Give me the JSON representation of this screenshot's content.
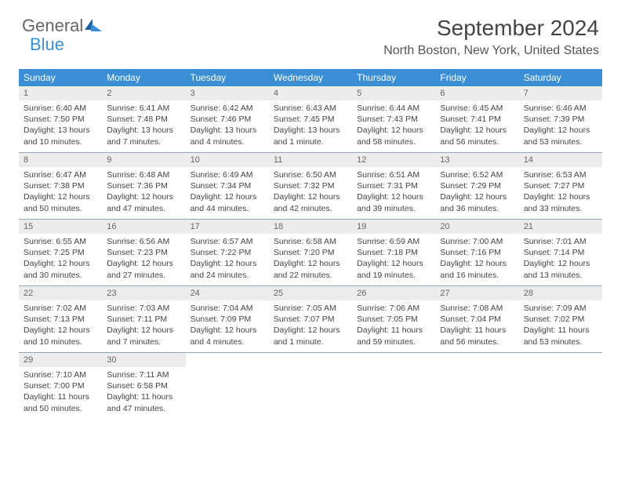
{
  "logo": {
    "part1": "General",
    "part2": "Blue"
  },
  "title": "September 2024",
  "location": "North Boston, New York, United States",
  "colors": {
    "header_bar": "#3a8fd4",
    "daynum_bg": "#ececec",
    "week_border": "#8fa8bd",
    "text": "#444444",
    "logo_grey": "#666666",
    "logo_blue": "#3a8fd4"
  },
  "dow": [
    "Sunday",
    "Monday",
    "Tuesday",
    "Wednesday",
    "Thursday",
    "Friday",
    "Saturday"
  ],
  "days": [
    {
      "n": "1",
      "sr": "Sunrise: 6:40 AM",
      "ss": "Sunset: 7:50 PM",
      "dl1": "Daylight: 13 hours",
      "dl2": "and 10 minutes."
    },
    {
      "n": "2",
      "sr": "Sunrise: 6:41 AM",
      "ss": "Sunset: 7:48 PM",
      "dl1": "Daylight: 13 hours",
      "dl2": "and 7 minutes."
    },
    {
      "n": "3",
      "sr": "Sunrise: 6:42 AM",
      "ss": "Sunset: 7:46 PM",
      "dl1": "Daylight: 13 hours",
      "dl2": "and 4 minutes."
    },
    {
      "n": "4",
      "sr": "Sunrise: 6:43 AM",
      "ss": "Sunset: 7:45 PM",
      "dl1": "Daylight: 13 hours",
      "dl2": "and 1 minute."
    },
    {
      "n": "5",
      "sr": "Sunrise: 6:44 AM",
      "ss": "Sunset: 7:43 PM",
      "dl1": "Daylight: 12 hours",
      "dl2": "and 58 minutes."
    },
    {
      "n": "6",
      "sr": "Sunrise: 6:45 AM",
      "ss": "Sunset: 7:41 PM",
      "dl1": "Daylight: 12 hours",
      "dl2": "and 56 minutes."
    },
    {
      "n": "7",
      "sr": "Sunrise: 6:46 AM",
      "ss": "Sunset: 7:39 PM",
      "dl1": "Daylight: 12 hours",
      "dl2": "and 53 minutes."
    },
    {
      "n": "8",
      "sr": "Sunrise: 6:47 AM",
      "ss": "Sunset: 7:38 PM",
      "dl1": "Daylight: 12 hours",
      "dl2": "and 50 minutes."
    },
    {
      "n": "9",
      "sr": "Sunrise: 6:48 AM",
      "ss": "Sunset: 7:36 PM",
      "dl1": "Daylight: 12 hours",
      "dl2": "and 47 minutes."
    },
    {
      "n": "10",
      "sr": "Sunrise: 6:49 AM",
      "ss": "Sunset: 7:34 PM",
      "dl1": "Daylight: 12 hours",
      "dl2": "and 44 minutes."
    },
    {
      "n": "11",
      "sr": "Sunrise: 6:50 AM",
      "ss": "Sunset: 7:32 PM",
      "dl1": "Daylight: 12 hours",
      "dl2": "and 42 minutes."
    },
    {
      "n": "12",
      "sr": "Sunrise: 6:51 AM",
      "ss": "Sunset: 7:31 PM",
      "dl1": "Daylight: 12 hours",
      "dl2": "and 39 minutes."
    },
    {
      "n": "13",
      "sr": "Sunrise: 6:52 AM",
      "ss": "Sunset: 7:29 PM",
      "dl1": "Daylight: 12 hours",
      "dl2": "and 36 minutes."
    },
    {
      "n": "14",
      "sr": "Sunrise: 6:53 AM",
      "ss": "Sunset: 7:27 PM",
      "dl1": "Daylight: 12 hours",
      "dl2": "and 33 minutes."
    },
    {
      "n": "15",
      "sr": "Sunrise: 6:55 AM",
      "ss": "Sunset: 7:25 PM",
      "dl1": "Daylight: 12 hours",
      "dl2": "and 30 minutes."
    },
    {
      "n": "16",
      "sr": "Sunrise: 6:56 AM",
      "ss": "Sunset: 7:23 PM",
      "dl1": "Daylight: 12 hours",
      "dl2": "and 27 minutes."
    },
    {
      "n": "17",
      "sr": "Sunrise: 6:57 AM",
      "ss": "Sunset: 7:22 PM",
      "dl1": "Daylight: 12 hours",
      "dl2": "and 24 minutes."
    },
    {
      "n": "18",
      "sr": "Sunrise: 6:58 AM",
      "ss": "Sunset: 7:20 PM",
      "dl1": "Daylight: 12 hours",
      "dl2": "and 22 minutes."
    },
    {
      "n": "19",
      "sr": "Sunrise: 6:59 AM",
      "ss": "Sunset: 7:18 PM",
      "dl1": "Daylight: 12 hours",
      "dl2": "and 19 minutes."
    },
    {
      "n": "20",
      "sr": "Sunrise: 7:00 AM",
      "ss": "Sunset: 7:16 PM",
      "dl1": "Daylight: 12 hours",
      "dl2": "and 16 minutes."
    },
    {
      "n": "21",
      "sr": "Sunrise: 7:01 AM",
      "ss": "Sunset: 7:14 PM",
      "dl1": "Daylight: 12 hours",
      "dl2": "and 13 minutes."
    },
    {
      "n": "22",
      "sr": "Sunrise: 7:02 AM",
      "ss": "Sunset: 7:13 PM",
      "dl1": "Daylight: 12 hours",
      "dl2": "and 10 minutes."
    },
    {
      "n": "23",
      "sr": "Sunrise: 7:03 AM",
      "ss": "Sunset: 7:11 PM",
      "dl1": "Daylight: 12 hours",
      "dl2": "and 7 minutes."
    },
    {
      "n": "24",
      "sr": "Sunrise: 7:04 AM",
      "ss": "Sunset: 7:09 PM",
      "dl1": "Daylight: 12 hours",
      "dl2": "and 4 minutes."
    },
    {
      "n": "25",
      "sr": "Sunrise: 7:05 AM",
      "ss": "Sunset: 7:07 PM",
      "dl1": "Daylight: 12 hours",
      "dl2": "and 1 minute."
    },
    {
      "n": "26",
      "sr": "Sunrise: 7:06 AM",
      "ss": "Sunset: 7:05 PM",
      "dl1": "Daylight: 11 hours",
      "dl2": "and 59 minutes."
    },
    {
      "n": "27",
      "sr": "Sunrise: 7:08 AM",
      "ss": "Sunset: 7:04 PM",
      "dl1": "Daylight: 11 hours",
      "dl2": "and 56 minutes."
    },
    {
      "n": "28",
      "sr": "Sunrise: 7:09 AM",
      "ss": "Sunset: 7:02 PM",
      "dl1": "Daylight: 11 hours",
      "dl2": "and 53 minutes."
    },
    {
      "n": "29",
      "sr": "Sunrise: 7:10 AM",
      "ss": "Sunset: 7:00 PM",
      "dl1": "Daylight: 11 hours",
      "dl2": "and 50 minutes."
    },
    {
      "n": "30",
      "sr": "Sunrise: 7:11 AM",
      "ss": "Sunset: 6:58 PM",
      "dl1": "Daylight: 11 hours",
      "dl2": "and 47 minutes."
    }
  ]
}
